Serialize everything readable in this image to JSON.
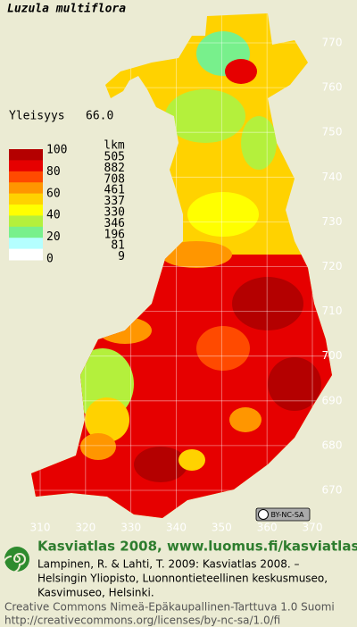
{
  "title": "Luzula multiflora",
  "frequency": {
    "label": "Yleisyys",
    "value": "66.0"
  },
  "legend": {
    "scale": [
      100,
      80,
      60,
      40,
      20,
      0
    ],
    "count_header": "lkm",
    "classes": [
      {
        "color": "#b40000",
        "count": 505
      },
      {
        "color": "#e60000",
        "count": 882
      },
      {
        "color": "#ff4a00",
        "count": 708
      },
      {
        "color": "#ff9600",
        "count": 461
      },
      {
        "color": "#ffd200",
        "count": 337
      },
      {
        "color": "#ffff00",
        "count": 330
      },
      {
        "color": "#b4f03c",
        "count": 346
      },
      {
        "color": "#78f08c",
        "count": 196
      },
      {
        "color": "#b4ffff",
        "count": 81
      },
      {
        "color": "#ffffff",
        "count": 9
      }
    ]
  },
  "grid": {
    "northing": [
      770,
      760,
      750,
      740,
      730,
      720,
      710,
      700,
      690,
      680,
      670
    ],
    "easting": [
      310,
      320,
      330,
      340,
      350,
      360,
      370
    ]
  },
  "license_badge": "BY-NC-SA",
  "footer": {
    "heading": "Kasviatlas 2008, www.luomus.fi/kasviatlas",
    "citation": [
      "Lampinen, R. & Lahti, T. 2009: Kasviatlas 2008. –",
      "Helsingin Yliopisto, Luonnontieteellinen keskusmuseo,",
      "Kasvimuseo, Helsinki."
    ],
    "license": [
      "Creative Commons Nimeä-Epäkaupallinen-Tarttuva 1.0 Suomi",
      "http://creativecommons.org/licenses/by-nc-sa/1.0/fi"
    ]
  }
}
